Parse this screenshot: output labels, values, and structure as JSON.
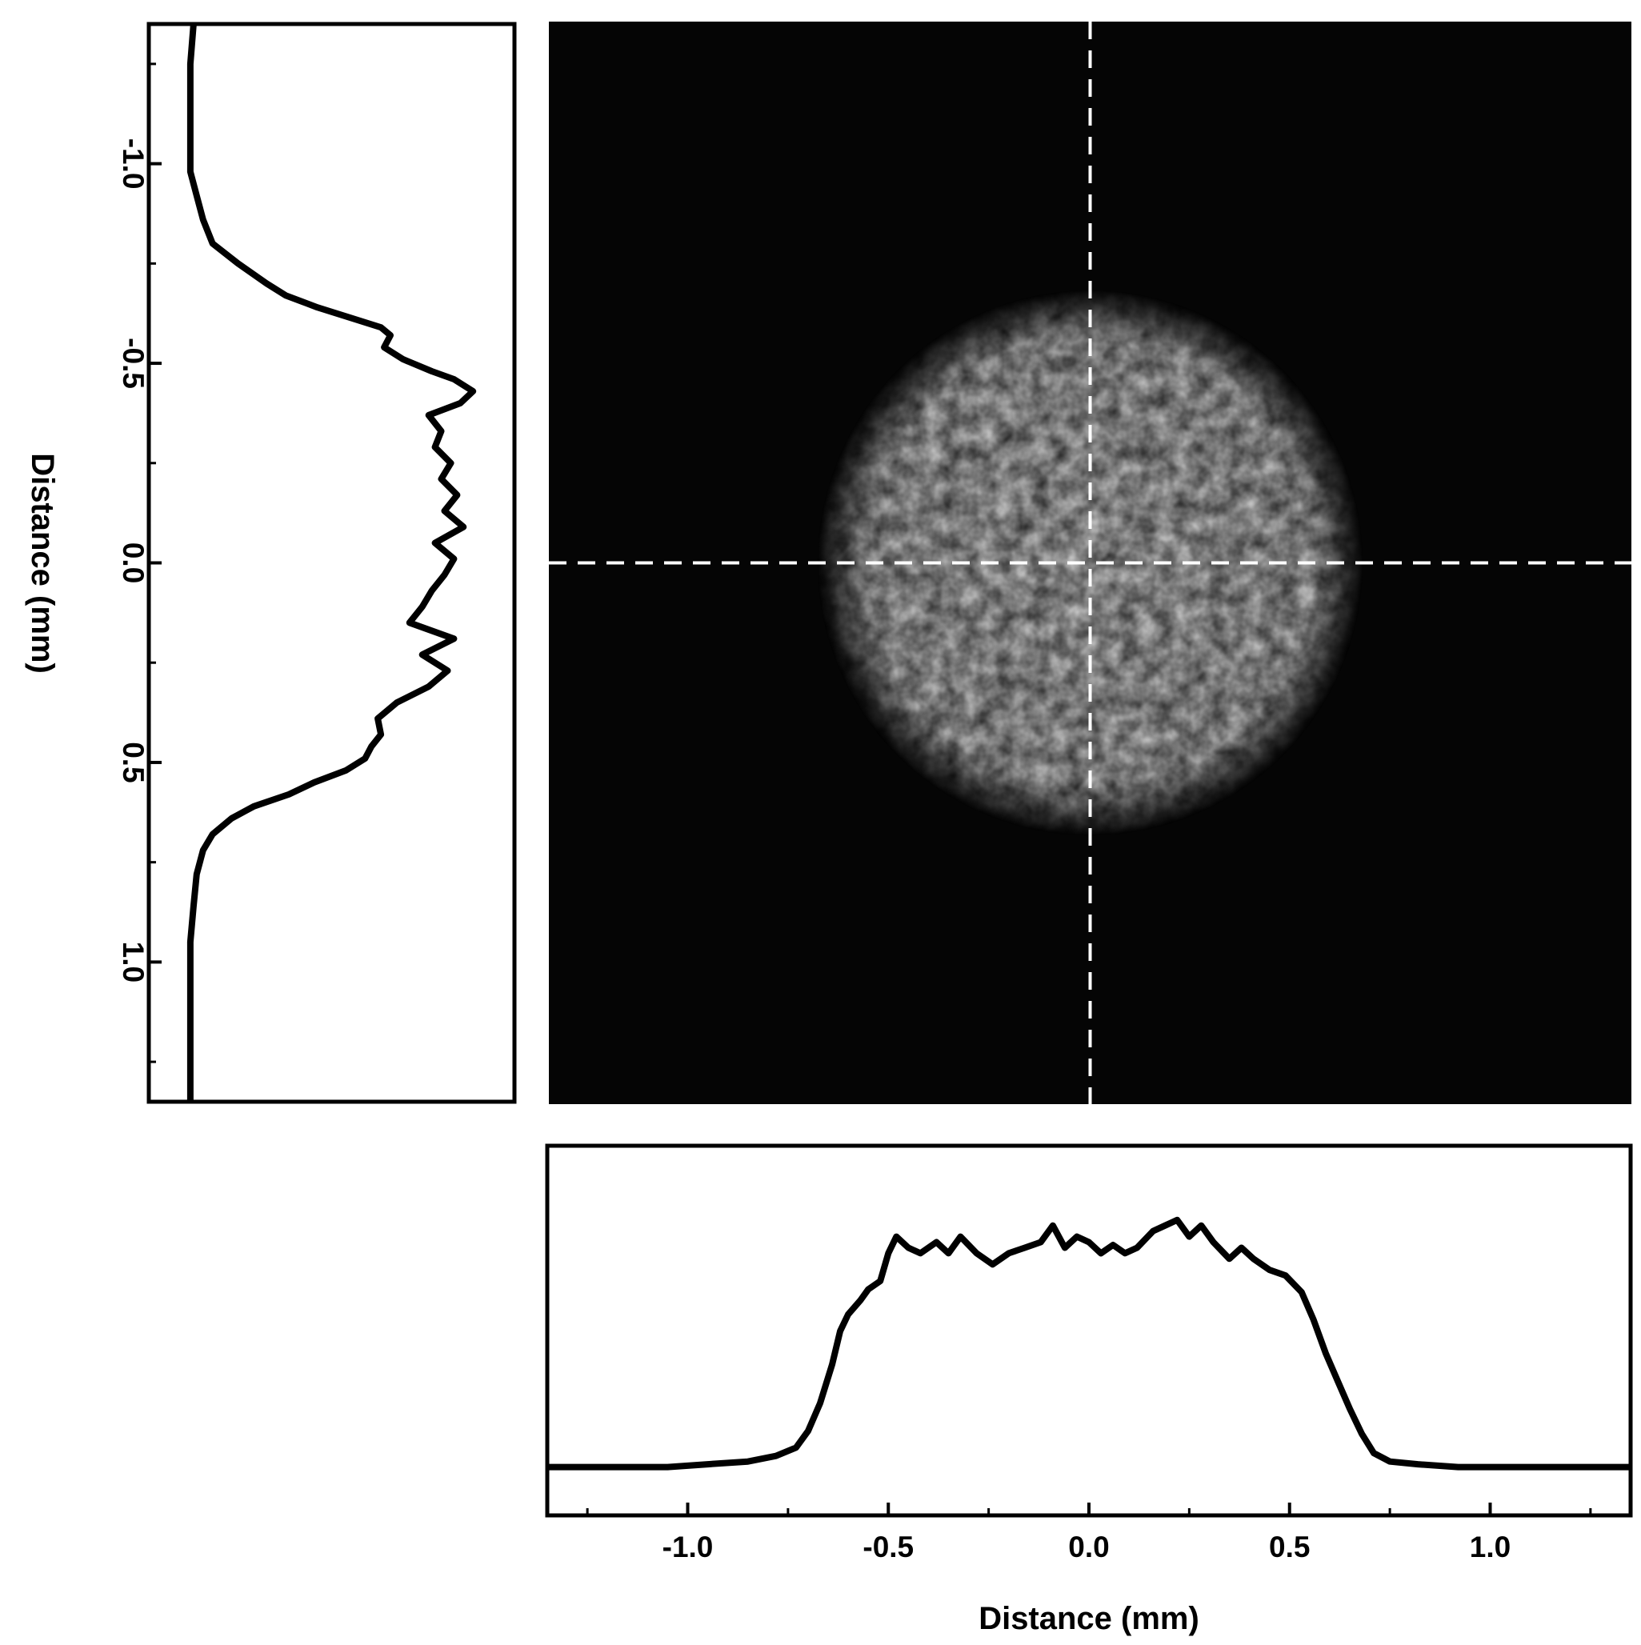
{
  "chart_data": [
    {
      "type": "image",
      "description_role": "beam-profile-image",
      "xlim": [
        -1.35,
        1.35
      ],
      "ylim": [
        -1.35,
        1.35
      ],
      "beam_center": [
        0.0,
        0.0
      ],
      "beam_radius_mm": 0.68,
      "crosshair": {
        "x": 0.0,
        "y": 0.0,
        "style": "dashed",
        "color": "#ffffff"
      },
      "background_color": "#050505",
      "spot_color": "#d8d8d8"
    },
    {
      "type": "line",
      "orientation": "vertical",
      "ylabel": "Distance (mm)",
      "ylim": [
        -1.35,
        1.35
      ],
      "y_inverted": true,
      "yticks": [
        -1.0,
        -0.5,
        0.0,
        0.5,
        1.0
      ],
      "ytick_labels": [
        "-1.0",
        "-0.5",
        "0.0",
        "0.5",
        "1.0"
      ],
      "intensity_lim": [
        0,
        1
      ],
      "points": [
        [
          -1.35,
          0.04
        ],
        [
          -1.25,
          0.03
        ],
        [
          -1.15,
          0.03
        ],
        [
          -1.05,
          0.03
        ],
        [
          -0.98,
          0.03
        ],
        [
          -0.92,
          0.05
        ],
        [
          -0.86,
          0.07
        ],
        [
          -0.8,
          0.1
        ],
        [
          -0.75,
          0.18
        ],
        [
          -0.7,
          0.27
        ],
        [
          -0.67,
          0.33
        ],
        [
          -0.64,
          0.43
        ],
        [
          -0.61,
          0.55
        ],
        [
          -0.59,
          0.63
        ],
        [
          -0.57,
          0.66
        ],
        [
          -0.54,
          0.64
        ],
        [
          -0.51,
          0.7
        ],
        [
          -0.48,
          0.79
        ],
        [
          -0.46,
          0.86
        ],
        [
          -0.43,
          0.92
        ],
        [
          -0.4,
          0.88
        ],
        [
          -0.37,
          0.78
        ],
        [
          -0.33,
          0.82
        ],
        [
          -0.29,
          0.8
        ],
        [
          -0.25,
          0.85
        ],
        [
          -0.21,
          0.82
        ],
        [
          -0.17,
          0.87
        ],
        [
          -0.13,
          0.83
        ],
        [
          -0.09,
          0.89
        ],
        [
          -0.05,
          0.8
        ],
        [
          -0.01,
          0.86
        ],
        [
          0.03,
          0.83
        ],
        [
          0.07,
          0.79
        ],
        [
          0.11,
          0.76
        ],
        [
          0.15,
          0.72
        ],
        [
          0.19,
          0.86
        ],
        [
          0.23,
          0.76
        ],
        [
          0.27,
          0.84
        ],
        [
          0.31,
          0.78
        ],
        [
          0.35,
          0.68
        ],
        [
          0.39,
          0.62
        ],
        [
          0.43,
          0.63
        ],
        [
          0.46,
          0.6
        ],
        [
          0.49,
          0.58
        ],
        [
          0.52,
          0.52
        ],
        [
          0.55,
          0.42
        ],
        [
          0.58,
          0.34
        ],
        [
          0.61,
          0.23
        ],
        [
          0.64,
          0.16
        ],
        [
          0.68,
          0.1
        ],
        [
          0.72,
          0.07
        ],
        [
          0.78,
          0.05
        ],
        [
          0.86,
          0.04
        ],
        [
          0.95,
          0.03
        ],
        [
          1.05,
          0.03
        ],
        [
          1.15,
          0.03
        ],
        [
          1.25,
          0.03
        ],
        [
          1.35,
          0.03
        ]
      ]
    },
    {
      "type": "line",
      "orientation": "horizontal",
      "xlabel": "Distance (mm)",
      "xlim": [
        -1.35,
        1.35
      ],
      "xticks": [
        -1.0,
        -0.5,
        0.0,
        0.5,
        1.0
      ],
      "xtick_labels": [
        "-1.0",
        "-0.5",
        "0.0",
        "0.5",
        "1.0"
      ],
      "intensity_lim": [
        0,
        1
      ],
      "points": [
        [
          -1.35,
          0.03
        ],
        [
          -1.25,
          0.03
        ],
        [
          -1.15,
          0.03
        ],
        [
          -1.05,
          0.03
        ],
        [
          -0.95,
          0.04
        ],
        [
          -0.85,
          0.05
        ],
        [
          -0.78,
          0.07
        ],
        [
          -0.73,
          0.1
        ],
        [
          -0.7,
          0.16
        ],
        [
          -0.67,
          0.26
        ],
        [
          -0.64,
          0.4
        ],
        [
          -0.62,
          0.52
        ],
        [
          -0.6,
          0.58
        ],
        [
          -0.57,
          0.63
        ],
        [
          -0.55,
          0.67
        ],
        [
          -0.52,
          0.7
        ],
        [
          -0.5,
          0.8
        ],
        [
          -0.48,
          0.86
        ],
        [
          -0.45,
          0.82
        ],
        [
          -0.42,
          0.8
        ],
        [
          -0.38,
          0.84
        ],
        [
          -0.35,
          0.8
        ],
        [
          -0.32,
          0.86
        ],
        [
          -0.28,
          0.8
        ],
        [
          -0.24,
          0.76
        ],
        [
          -0.2,
          0.8
        ],
        [
          -0.16,
          0.82
        ],
        [
          -0.12,
          0.84
        ],
        [
          -0.09,
          0.9
        ],
        [
          -0.06,
          0.82
        ],
        [
          -0.03,
          0.86
        ],
        [
          0.0,
          0.84
        ],
        [
          0.03,
          0.8
        ],
        [
          0.06,
          0.83
        ],
        [
          0.09,
          0.8
        ],
        [
          0.12,
          0.82
        ],
        [
          0.16,
          0.88
        ],
        [
          0.19,
          0.9
        ],
        [
          0.22,
          0.92
        ],
        [
          0.25,
          0.86
        ],
        [
          0.28,
          0.9
        ],
        [
          0.31,
          0.84
        ],
        [
          0.35,
          0.78
        ],
        [
          0.38,
          0.82
        ],
        [
          0.41,
          0.78
        ],
        [
          0.45,
          0.74
        ],
        [
          0.49,
          0.72
        ],
        [
          0.53,
          0.66
        ],
        [
          0.56,
          0.56
        ],
        [
          0.59,
          0.44
        ],
        [
          0.62,
          0.34
        ],
        [
          0.65,
          0.24
        ],
        [
          0.68,
          0.15
        ],
        [
          0.71,
          0.08
        ],
        [
          0.75,
          0.05
        ],
        [
          0.82,
          0.04
        ],
        [
          0.92,
          0.03
        ],
        [
          1.05,
          0.03
        ],
        [
          1.2,
          0.03
        ],
        [
          1.35,
          0.03
        ]
      ]
    }
  ]
}
